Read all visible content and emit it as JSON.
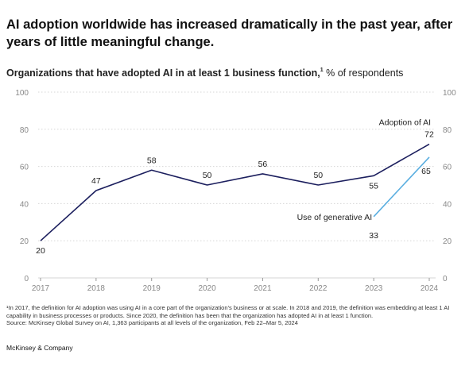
{
  "headline": "AI adoption worldwide has increased dramatically in the past year, after years of little meaningful change.",
  "subtitle": {
    "main": "Organizations that have adopted AI in at least 1 business function,",
    "footnote_marker": "1",
    "unit": " % of respondents"
  },
  "footnotes": {
    "note1": "¹In 2017, the definition for AI adoption was using AI in a core part of the organization’s business or at scale. In 2018 and 2019, the definition was embedding at least 1 AI capability in business processes or products. Since 2020, the definition has been that the organization has adopted AI in at least 1 function.",
    "source": "Source: McKinsey Global Survey on AI, 1,363 participants at all levels of the organization, Feb 22–Mar 5, 2024"
  },
  "brand": "McKinsey & Company",
  "colors": {
    "adoption": "#1c1f5e",
    "generative": "#5aaee0",
    "grid": "#d6d6d6",
    "tick_text": "#888888"
  },
  "chart_data": {
    "type": "line",
    "ylim": [
      0,
      100
    ],
    "yticks": [
      "0",
      "20",
      "40",
      "60",
      "80",
      "100"
    ],
    "grid": true,
    "series": [
      {
        "name": "Adoption of AI",
        "x": [
          "2017",
          "2018",
          "2019",
          "2020",
          "2021",
          "2022",
          "2023",
          "2024"
        ],
        "values": [
          20,
          47,
          58,
          50,
          56,
          50,
          55,
          72
        ]
      },
      {
        "name": "Use of generative AI",
        "x": [
          "2023",
          "2024"
        ],
        "values": [
          33,
          65
        ]
      }
    ]
  }
}
